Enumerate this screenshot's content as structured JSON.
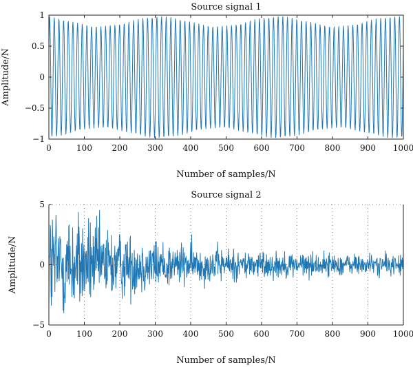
{
  "chart_data": [
    {
      "type": "line",
      "title": "Source signal 1",
      "xlabel": "Number of samples/N",
      "ylabel": "Amplitude/N",
      "xlim": [
        0,
        1000
      ],
      "ylim": [
        -1,
        1
      ],
      "xticks": [
        0,
        100,
        200,
        300,
        400,
        500,
        600,
        700,
        800,
        900,
        1000
      ],
      "yticks": [
        -1,
        -0.5,
        0,
        0.5,
        1
      ],
      "ytick_labels": [
        "−1",
        "−0.5",
        "0",
        "0.5",
        "1"
      ],
      "grid": false,
      "color": "#1f77b4",
      "series": [
        {
          "waveform": "sinusoid",
          "samples": 1000,
          "cycles": 76,
          "peak_amplitude_range": [
            0.82,
            0.98
          ]
        }
      ]
    },
    {
      "type": "line",
      "title": "Source signal 2",
      "xlabel": "Number of samples/N",
      "ylabel": "Amplitude/N",
      "xlim": [
        0,
        1000
      ],
      "ylim": [
        -5,
        5
      ],
      "xticks": [
        0,
        100,
        200,
        300,
        400,
        500,
        600,
        700,
        800,
        900,
        1000
      ],
      "yticks": [
        -5,
        0,
        5
      ],
      "ytick_labels": [
        "−5",
        "0",
        "5"
      ],
      "grid": true,
      "color": "#1f77b4",
      "series": [
        {
          "waveform": "decaying noise",
          "samples": 1000,
          "amplitude_start": 5,
          "amplitude_end": 0.7
        }
      ]
    }
  ]
}
